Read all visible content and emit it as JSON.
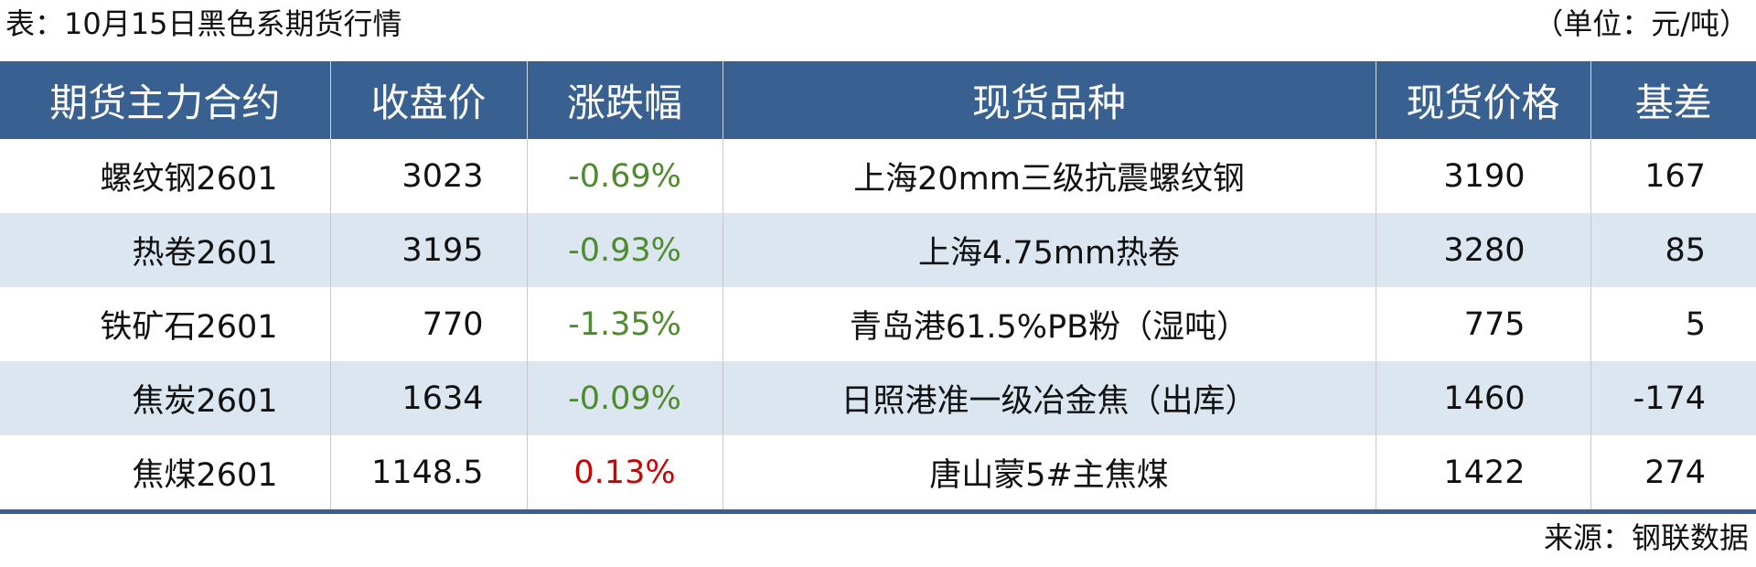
{
  "title": "表：10月15日黑色系期货行情",
  "unit": "（单位：元/吨）",
  "colors": {
    "header_bg": "#386091",
    "alt_row": "#dce6f1",
    "down": "#4e8a2e",
    "up": "#d00000"
  },
  "table": {
    "headers": [
      "期货主力合约",
      "收盘价",
      "涨跌幅",
      "现货品种",
      "现货价格",
      "基差"
    ],
    "rows": [
      {
        "contract": "螺纹钢2601",
        "close": "3023",
        "change": "-0.69%",
        "direction": "down",
        "spot": "上海20mm三级抗震螺纹钢",
        "spot_price": "3190",
        "basis": "167"
      },
      {
        "contract": "热卷2601",
        "close": "3195",
        "change": "-0.93%",
        "direction": "down",
        "spot": "上海4.75mm热卷",
        "spot_price": "3280",
        "basis": "85"
      },
      {
        "contract": "铁矿石2601",
        "close": "770",
        "change": "-1.35%",
        "direction": "down",
        "spot": "青岛港61.5%PB粉（湿吨）",
        "spot_price": "775",
        "basis": "5"
      },
      {
        "contract": "焦炭2601",
        "close": "1634",
        "change": "-0.09%",
        "direction": "down",
        "spot": "日照港准一级冶金焦（出库）",
        "spot_price": "1460",
        "basis": "-174"
      },
      {
        "contract": "焦煤2601",
        "close": "1148.5",
        "change": "0.13%",
        "direction": "up",
        "spot": "唐山蒙5#主焦煤",
        "spot_price": "1422",
        "basis": "274"
      }
    ]
  },
  "source": "来源：钢联数据"
}
